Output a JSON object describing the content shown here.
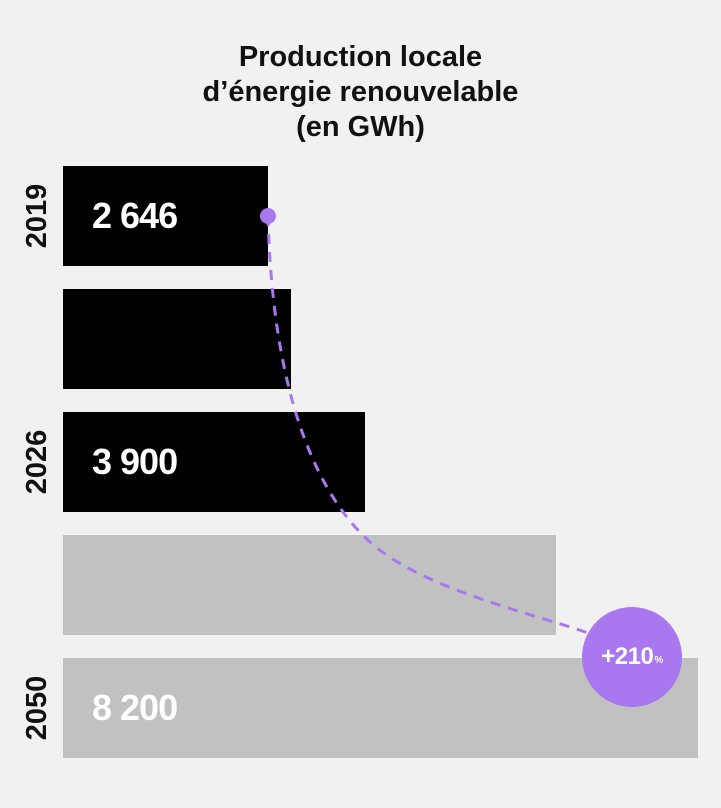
{
  "title": {
    "line1": "Production locale",
    "line2": "d’énergie renouvelable",
    "line3": "(en GWh)"
  },
  "colors": {
    "dark_bar": "#000000",
    "light_bar": "#c1c1c1",
    "accent": "#a977f0",
    "background": "#f1f1f1"
  },
  "chart_data": {
    "type": "bar",
    "orientation": "horizontal",
    "title": "Production locale d’énergie renouvelable (en GWh)",
    "unit": "GWh",
    "xlim": [
      0,
      8200
    ],
    "bars": [
      {
        "year": "2019",
        "value": 2646,
        "label": "2 646",
        "style": "dark"
      },
      {
        "year": "",
        "value": 2940,
        "label": "",
        "style": "dark"
      },
      {
        "year": "2026",
        "value": 3900,
        "label": "3 900",
        "style": "dark"
      },
      {
        "year": "",
        "value": 6370,
        "label": "",
        "style": "light"
      },
      {
        "year": "2050",
        "value": 8200,
        "label": "8 200",
        "style": "light"
      }
    ],
    "annotation": {
      "value": "+210",
      "unit": "%",
      "from_year": "2019",
      "to_year": "2050"
    }
  }
}
